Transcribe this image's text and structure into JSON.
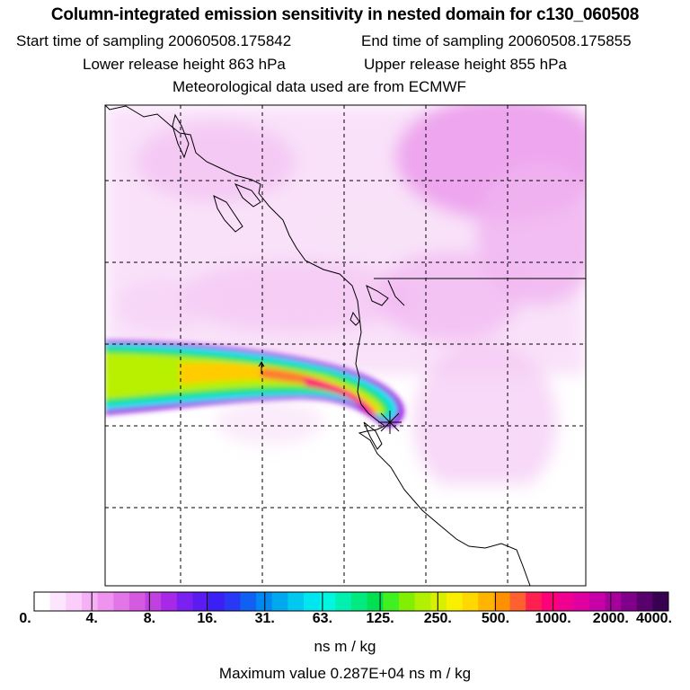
{
  "header": {
    "title": "Column-integrated emission sensitivity in nested domain for c130_060508",
    "start_label": "Start time of sampling 20060508.175842",
    "end_label": "End time of sampling 20060508.175855",
    "lower_label": "Lower release height  863 hPa",
    "upper_label": "Upper release height  855 hPa",
    "met_label": "Meteorological data used are from ECMWF"
  },
  "colorbar": {
    "ticks": [
      "0.",
      "4.",
      "8.",
      "16.",
      "31.",
      "63.",
      "125.",
      "250.",
      "500.",
      "1000.",
      "2000.",
      "4000."
    ],
    "colors": [
      "#ffffff",
      "#fde6fd",
      "#fbcdfb",
      "#f6b0f6",
      "#ee93ee",
      "#e276e8",
      "#d45bdf",
      "#c040e0",
      "#a828e8",
      "#7a20f0",
      "#5a1cf0",
      "#3a20f4",
      "#2838f4",
      "#1060f4",
      "#0088f0",
      "#00a8f0",
      "#00c8f0",
      "#00e6f0",
      "#00f6e0",
      "#00f0b0",
      "#00ea80",
      "#00e050",
      "#40f020",
      "#80f000",
      "#b0f000",
      "#d8f000",
      "#f8f000",
      "#ffd800",
      "#ffb400",
      "#ff9000",
      "#ff6030",
      "#ff2050",
      "#ff0078",
      "#f00090",
      "#e000a0",
      "#c800a8",
      "#a8009c",
      "#80008a",
      "#58006c",
      "#380050"
    ],
    "units": "ns m / kg",
    "max_label": "Maximum value  0.287E+04 ns m / kg"
  },
  "map": {
    "release_marker": "star-marker",
    "plume_colors": [
      "#9b28e6",
      "#00e2f4",
      "#1ee060",
      "#b8f000",
      "#ffcc00",
      "#ff7a30",
      "#ff0a78"
    ]
  }
}
